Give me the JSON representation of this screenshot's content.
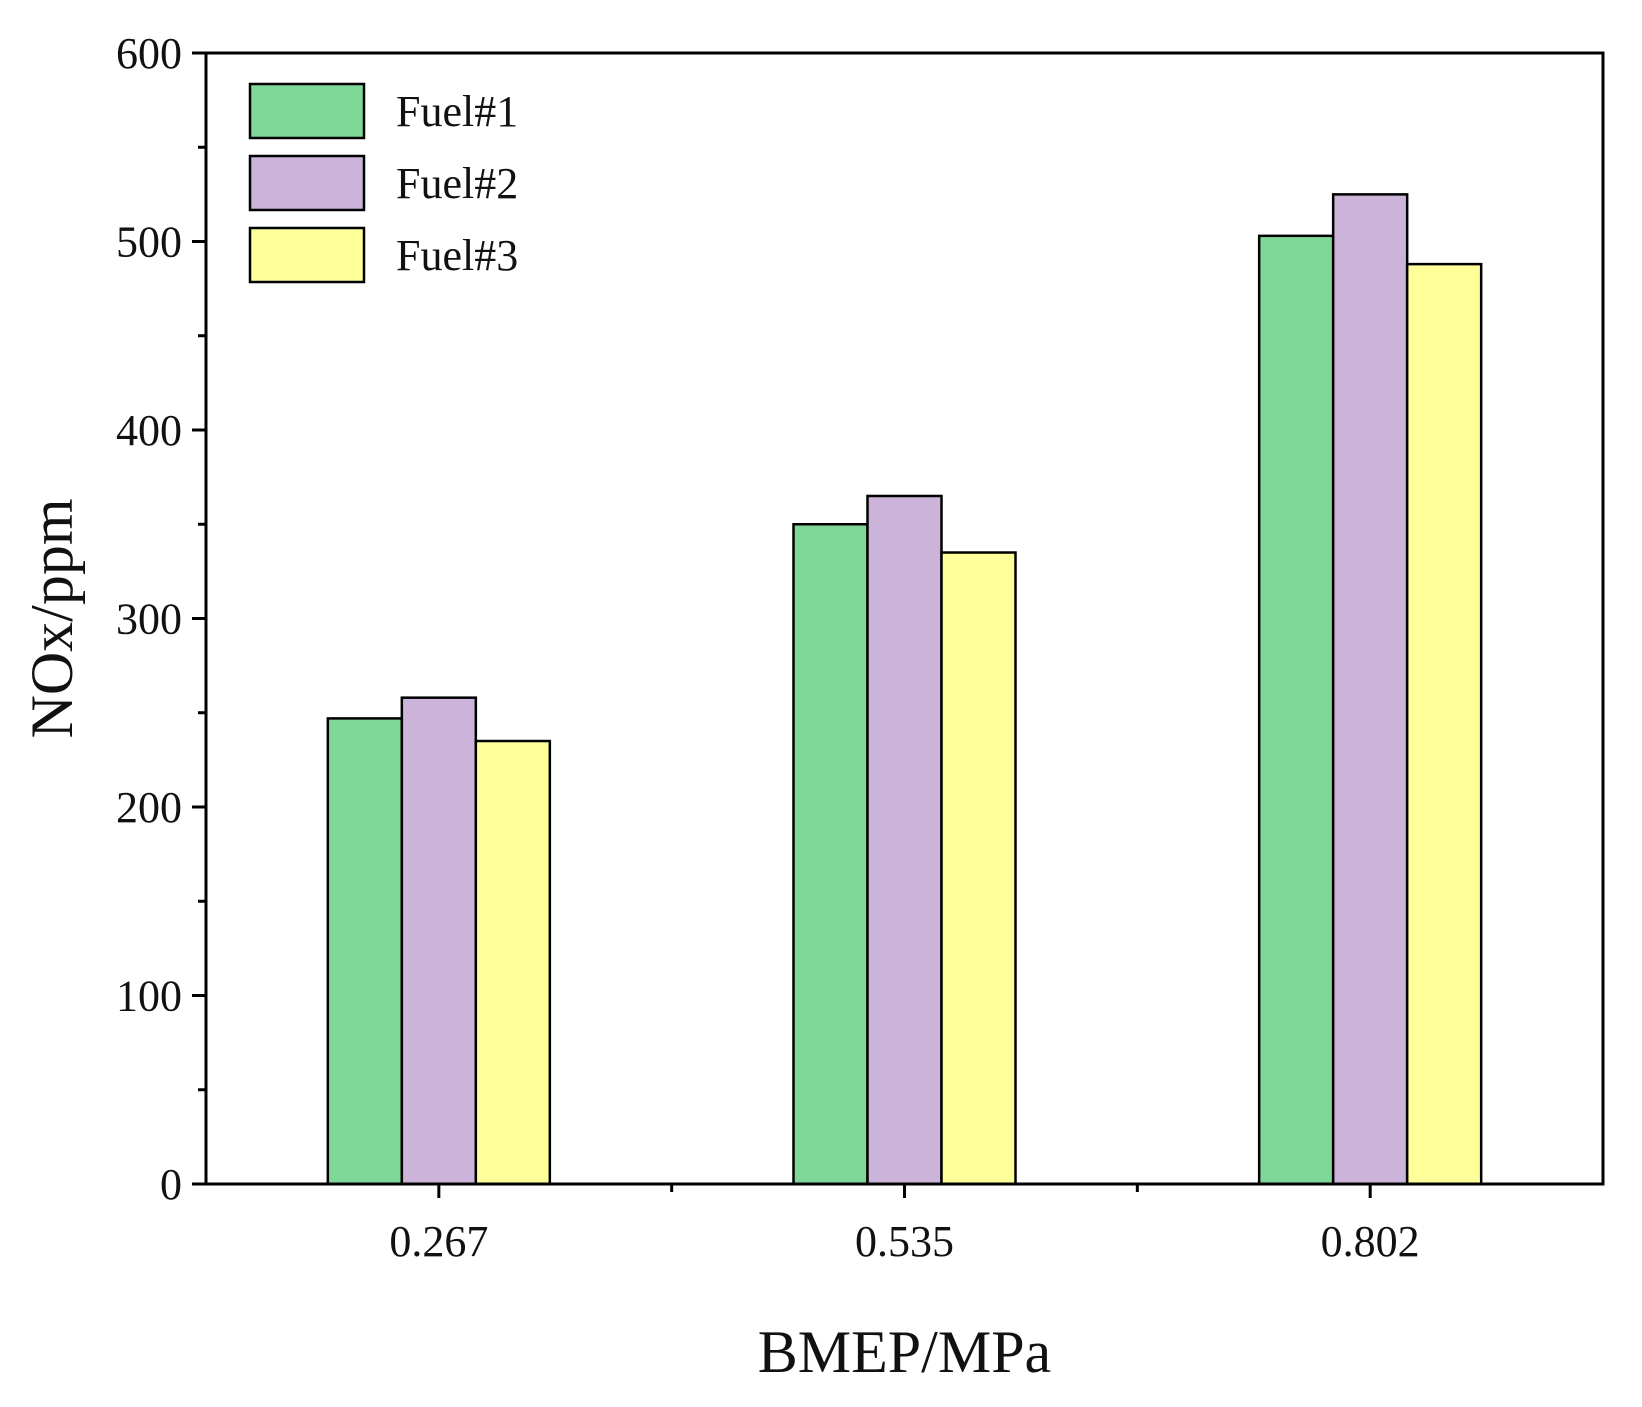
{
  "chart_data": {
    "type": "bar",
    "title": "",
    "xlabel": "BMEP/MPa",
    "ylabel": "NOx/ppm",
    "categories": [
      "0.267",
      "0.535",
      "0.802"
    ],
    "series": [
      {
        "name": "Fuel#1",
        "color": "#7fd897",
        "values": [
          247,
          350,
          503
        ]
      },
      {
        "name": "Fuel#2",
        "color": "#ccb3d9",
        "values": [
          258,
          365,
          525
        ]
      },
      {
        "name": "Fuel#3",
        "color": "#ffff99",
        "values": [
          235,
          335,
          488
        ]
      }
    ],
    "ylim": [
      0,
      600
    ],
    "yticks": [
      0,
      100,
      200,
      300,
      400,
      500,
      600
    ],
    "ytick_labels": [
      "0",
      "100",
      "200",
      "300",
      "400",
      "500",
      "600"
    ],
    "grid": false,
    "legend_position": "top-left"
  }
}
